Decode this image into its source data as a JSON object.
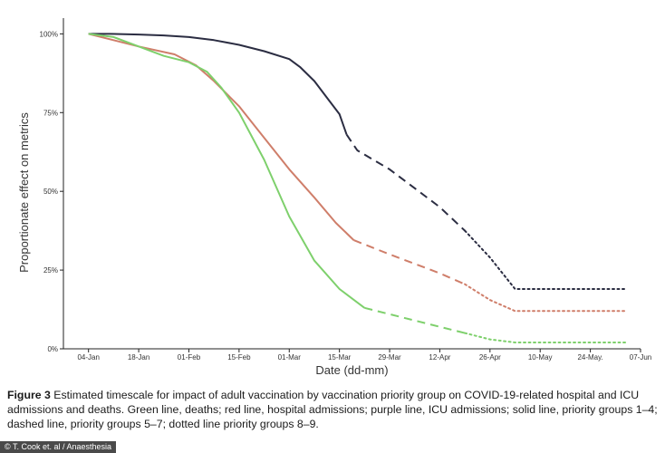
{
  "chart_data": {
    "type": "line",
    "title": "",
    "xlabel": "Date (dd-mm)",
    "ylabel": "Proportionate effect on metrics",
    "x_domain": [
      "2020-12-28",
      "2021-06-07"
    ],
    "ylim": [
      0,
      105
    ],
    "yticks": [
      {
        "value": 0,
        "label": "0%"
      },
      {
        "value": 25,
        "label": "25%"
      },
      {
        "value": 50,
        "label": "50%"
      },
      {
        "value": 75,
        "label": "75%"
      },
      {
        "value": 100,
        "label": "100%"
      }
    ],
    "xticks": [
      {
        "date": "2021-01-04",
        "label": "04-Jan"
      },
      {
        "date": "2021-01-18",
        "label": "18-Jan"
      },
      {
        "date": "2021-02-01",
        "label": "01-Feb"
      },
      {
        "date": "2021-02-15",
        "label": "15-Feb"
      },
      {
        "date": "2021-03-01",
        "label": "01-Mar"
      },
      {
        "date": "2021-03-15",
        "label": "15-Mar"
      },
      {
        "date": "2021-03-29",
        "label": "29-Mar"
      },
      {
        "date": "2021-04-12",
        "label": "12-Apr"
      },
      {
        "date": "2021-04-26",
        "label": "26-Apr"
      },
      {
        "date": "2021-05-10",
        "label": "10-May"
      },
      {
        "date": "2021-05-24",
        "label": "24-May."
      },
      {
        "date": "2021-06-07",
        "label": "07-Jun"
      }
    ],
    "series": [
      {
        "name": "ICU admissions",
        "color": "#2b2d42",
        "segments": [
          {
            "style": "solid",
            "points": [
              [
                "2021-01-04",
                100
              ],
              [
                "2021-01-10",
                100
              ],
              [
                "2021-01-18",
                99.8
              ],
              [
                "2021-01-25",
                99.5
              ],
              [
                "2021-02-01",
                99
              ],
              [
                "2021-02-08",
                98
              ],
              [
                "2021-02-15",
                96.5
              ],
              [
                "2021-02-22",
                94.5
              ],
              [
                "2021-03-01",
                92
              ],
              [
                "2021-03-04",
                89.5
              ],
              [
                "2021-03-08",
                85
              ],
              [
                "2021-03-12",
                79
              ],
              [
                "2021-03-15",
                74.5
              ],
              [
                "2021-03-17",
                68
              ]
            ]
          },
          {
            "style": "dashed",
            "points": [
              [
                "2021-03-17",
                68
              ],
              [
                "2021-03-20",
                63
              ],
              [
                "2021-03-29",
                57
              ],
              [
                "2021-04-12",
                45
              ],
              [
                "2021-04-19",
                37.5
              ]
            ]
          },
          {
            "style": "dotted",
            "points": [
              [
                "2021-04-19",
                37.5
              ],
              [
                "2021-04-26",
                29
              ],
              [
                "2021-05-03",
                19
              ],
              [
                "2021-05-10",
                19
              ],
              [
                "2021-05-24",
                19
              ],
              [
                "2021-06-03",
                19
              ]
            ]
          }
        ]
      },
      {
        "name": "Hospital admissions",
        "color": "#cf7e6a",
        "segments": [
          {
            "style": "solid",
            "points": [
              [
                "2021-01-04",
                100
              ],
              [
                "2021-01-18",
                96
              ],
              [
                "2021-01-28",
                93.5
              ],
              [
                "2021-02-03",
                90
              ],
              [
                "2021-02-08",
                85
              ],
              [
                "2021-02-15",
                77
              ],
              [
                "2021-02-22",
                67
              ],
              [
                "2021-03-01",
                57
              ],
              [
                "2021-03-08",
                48
              ],
              [
                "2021-03-14",
                40
              ],
              [
                "2021-03-19",
                34.5
              ]
            ]
          },
          {
            "style": "dashed",
            "points": [
              [
                "2021-03-19",
                34.5
              ],
              [
                "2021-03-29",
                30
              ],
              [
                "2021-04-12",
                24
              ],
              [
                "2021-04-19",
                20.5
              ]
            ]
          },
          {
            "style": "dotted",
            "points": [
              [
                "2021-04-19",
                20.5
              ],
              [
                "2021-04-26",
                15.5
              ],
              [
                "2021-05-03",
                12
              ],
              [
                "2021-05-24",
                12
              ],
              [
                "2021-06-03",
                12
              ]
            ]
          }
        ]
      },
      {
        "name": "Deaths",
        "color": "#7ed06c",
        "segments": [
          {
            "style": "solid",
            "points": [
              [
                "2021-01-04",
                100
              ],
              [
                "2021-01-11",
                99
              ],
              [
                "2021-01-18",
                96
              ],
              [
                "2021-01-25",
                93
              ],
              [
                "2021-02-01",
                91
              ],
              [
                "2021-02-06",
                88
              ],
              [
                "2021-02-10",
                83
              ],
              [
                "2021-02-15",
                75
              ],
              [
                "2021-02-22",
                60
              ],
              [
                "2021-03-01",
                42
              ],
              [
                "2021-03-08",
                28
              ],
              [
                "2021-03-15",
                19
              ],
              [
                "2021-03-22",
                13
              ]
            ]
          },
          {
            "style": "dashed",
            "points": [
              [
                "2021-03-22",
                13
              ],
              [
                "2021-03-29",
                11
              ],
              [
                "2021-04-12",
                7
              ],
              [
                "2021-04-19",
                5
              ]
            ]
          },
          {
            "style": "dotted",
            "points": [
              [
                "2021-04-19",
                5
              ],
              [
                "2021-04-26",
                3
              ],
              [
                "2021-05-03",
                2
              ],
              [
                "2021-05-24",
                2
              ],
              [
                "2021-06-03",
                2
              ]
            ]
          }
        ]
      }
    ]
  },
  "caption": {
    "label": "Figure 3",
    "text": "Estimated timescale for impact of adult vaccination by vaccination priority group on COVID-19-related hospital and ICU admissions and deaths. Green line, deaths; red line, hospital admissions; purple line, ICU admissions; solid line, priority groups 1–4; dashed line, priority groups 5–7; dotted line priority groups 8–9."
  },
  "credit": "© T. Cook et. al / Anaesthesia"
}
